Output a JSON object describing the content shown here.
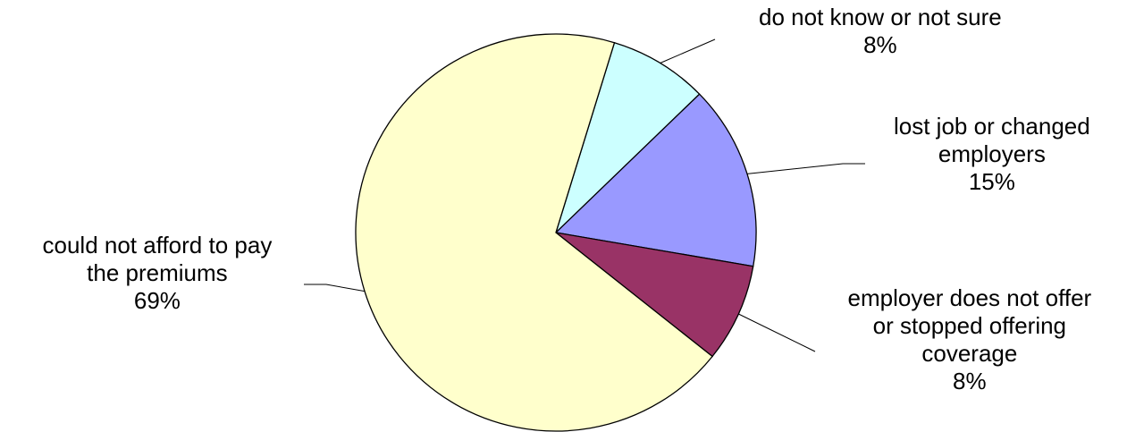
{
  "chart_data": {
    "type": "pie",
    "title": "",
    "legend": "none",
    "slices": [
      {
        "label_lines": [
          "do not know or not sure"
        ],
        "value": 8,
        "percent_label": "8%",
        "color": "#ccffff"
      },
      {
        "label_lines": [
          "lost job or changed",
          "employers"
        ],
        "value": 15,
        "percent_label": "15%",
        "color": "#9999ff"
      },
      {
        "label_lines": [
          "employer does not offer",
          "or stopped offering",
          "coverage"
        ],
        "value": 8,
        "percent_label": "8%",
        "color": "#993366"
      },
      {
        "label_lines": [
          "could not afford to pay",
          "the premiums"
        ],
        "value": 69,
        "percent_label": "69%",
        "color": "#ffffcc"
      }
    ]
  }
}
